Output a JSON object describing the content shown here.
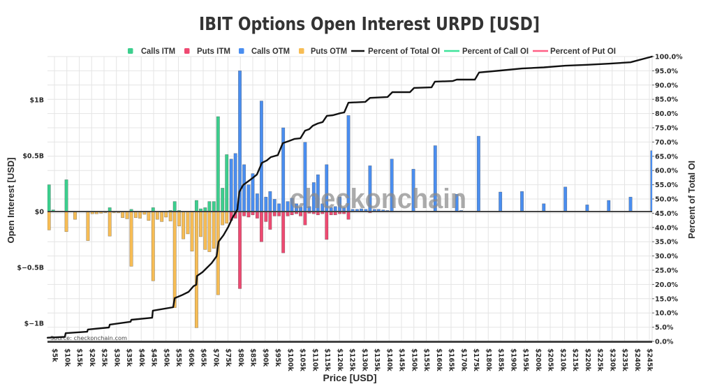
{
  "page": {
    "title": "IBIT Options Open Interest URPD [USD]",
    "watermark": "checkonchain",
    "source": "Source: checkonchain.com"
  },
  "legend": [
    {
      "label": "Calls ITM",
      "color": "#3ccf8e",
      "kind": "square"
    },
    {
      "label": "Puts ITM",
      "color": "#ef4a72",
      "kind": "square"
    },
    {
      "label": "Calls OTM",
      "color": "#4a8ef0",
      "kind": "square"
    },
    {
      "label": "Puts OTM",
      "color": "#f7bd55",
      "kind": "square"
    },
    {
      "label": "Percent of Total OI",
      "color": "#111111",
      "kind": "line"
    },
    {
      "label": "Percent of Call OI",
      "color": "#3ee39a",
      "kind": "line"
    },
    {
      "label": "Percent of Put OI",
      "color": "#ff5f85",
      "kind": "line"
    }
  ],
  "chart_data": {
    "type": "bar",
    "title": "IBIT Options Open Interest URPD [USD]",
    "xlabel": "Price [USD]",
    "ylabel": "Open Interest [USD]",
    "y2label": "Percent of Total OI",
    "barmode": "relative",
    "grid": true,
    "legend_position": "top",
    "xlim": [
      2.2,
      246.1
    ],
    "ylim": [
      -1.16,
      1.39
    ],
    "y2lim": [
      0,
      100
    ],
    "x_ticks": [
      {
        "value": 5,
        "label": "$5k"
      },
      {
        "value": 10,
        "label": "$10k"
      },
      {
        "value": 15,
        "label": "$15k"
      },
      {
        "value": 20,
        "label": "$20k"
      },
      {
        "value": 25,
        "label": "$25k"
      },
      {
        "value": 30,
        "label": "$30k"
      },
      {
        "value": 35,
        "label": "$35k"
      },
      {
        "value": 40,
        "label": "$40k"
      },
      {
        "value": 45,
        "label": "$45k"
      },
      {
        "value": 50,
        "label": "$50k"
      },
      {
        "value": 55,
        "label": "$55k"
      },
      {
        "value": 60,
        "label": "$60k"
      },
      {
        "value": 65,
        "label": "$65k"
      },
      {
        "value": 70,
        "label": "$70k"
      },
      {
        "value": 75,
        "label": "$75k"
      },
      {
        "value": 80,
        "label": "$80k"
      },
      {
        "value": 85,
        "label": "$85k"
      },
      {
        "value": 90,
        "label": "$90k"
      },
      {
        "value": 95,
        "label": "$95k"
      },
      {
        "value": 100,
        "label": "$100k"
      },
      {
        "value": 105,
        "label": "$105k"
      },
      {
        "value": 110,
        "label": "$110k"
      },
      {
        "value": 115,
        "label": "$115k"
      },
      {
        "value": 120,
        "label": "$120k"
      },
      {
        "value": 125,
        "label": "$125k"
      },
      {
        "value": 130,
        "label": "$130k"
      },
      {
        "value": 135,
        "label": "$135k"
      },
      {
        "value": 140,
        "label": "$140k"
      },
      {
        "value": 145,
        "label": "$145k"
      },
      {
        "value": 150,
        "label": "$150k"
      },
      {
        "value": 155,
        "label": "$155k"
      },
      {
        "value": 160,
        "label": "$160k"
      },
      {
        "value": 165,
        "label": "$165k"
      },
      {
        "value": 170,
        "label": "$170k"
      },
      {
        "value": 175,
        "label": "$175k"
      },
      {
        "value": 180,
        "label": "$180k"
      },
      {
        "value": 185,
        "label": "$185k"
      },
      {
        "value": 190,
        "label": "$190k"
      },
      {
        "value": 195,
        "label": "$195k"
      },
      {
        "value": 200,
        "label": "$200k"
      },
      {
        "value": 205,
        "label": "$205k"
      },
      {
        "value": 210,
        "label": "$210k"
      },
      {
        "value": 215,
        "label": "$215k"
      },
      {
        "value": 220,
        "label": "$220k"
      },
      {
        "value": 225,
        "label": "$225k"
      },
      {
        "value": 230,
        "label": "$230k"
      },
      {
        "value": 235,
        "label": "$235k"
      },
      {
        "value": 240,
        "label": "$240k"
      },
      {
        "value": 245,
        "label": "$245k"
      }
    ],
    "y_ticks": [
      {
        "value": 1,
        "label": "$1B"
      },
      {
        "value": 0.5,
        "label": "$0.5B"
      },
      {
        "value": 0,
        "label": "$0"
      },
      {
        "value": -0.5,
        "label": "$−0.5B"
      },
      {
        "value": -1,
        "label": "$−1B"
      }
    ],
    "y2_ticks": [
      {
        "value": 0,
        "label": "0.0%"
      },
      {
        "value": 5,
        "label": "5.0%"
      },
      {
        "value": 10,
        "label": "10.0%"
      },
      {
        "value": 15,
        "label": "15.0%"
      },
      {
        "value": 20,
        "label": "20.0%"
      },
      {
        "value": 25,
        "label": "25.0%"
      },
      {
        "value": 30,
        "label": "30.0%"
      },
      {
        "value": 35,
        "label": "35.0%"
      },
      {
        "value": 40,
        "label": "40.0%"
      },
      {
        "value": 45,
        "label": "45.0%"
      },
      {
        "value": 50,
        "label": "50.0%"
      },
      {
        "value": 55,
        "label": "55.0%"
      },
      {
        "value": 60,
        "label": "60.0%"
      },
      {
        "value": 65,
        "label": "65.0%"
      },
      {
        "value": 70,
        "label": "70.0%"
      },
      {
        "value": 75,
        "label": "75.0%"
      },
      {
        "value": 80,
        "label": "80.0%"
      },
      {
        "value": 85,
        "label": "85.0%"
      },
      {
        "value": 90,
        "label": "90.0%"
      },
      {
        "value": 95,
        "label": "95.0%"
      },
      {
        "value": 100,
        "label": "100.0%"
      }
    ],
    "series": [
      {
        "name": "Calls ITM",
        "type": "bar",
        "axis": "y",
        "color": "#3ccf8e",
        "points": [
          [
            2.8,
            0.24
          ],
          [
            4.5,
            0.015
          ],
          [
            6.3,
            0.005
          ],
          [
            8.0,
            0.005
          ],
          [
            9.8,
            0.285
          ],
          [
            18.5,
            0.005
          ],
          [
            27.3,
            0.035
          ],
          [
            36.0,
            0.02
          ],
          [
            44.8,
            0.035
          ],
          [
            51.8,
            0.01
          ],
          [
            53.5,
            0.09
          ],
          [
            55.3,
            0.01
          ],
          [
            62.3,
            0.1
          ],
          [
            64.0,
            0.025
          ],
          [
            65.8,
            0.035
          ],
          [
            67.5,
            0.09
          ],
          [
            69.3,
            0.09
          ],
          [
            71.0,
            0.85
          ],
          [
            72.8,
            0.21
          ],
          [
            74.5,
            0.51
          ]
        ]
      },
      {
        "name": "Puts ITM",
        "type": "bar",
        "axis": "y",
        "color": "#ef4a72",
        "points": [
          [
            76.3,
            -0.08
          ],
          [
            78.0,
            -0.06
          ],
          [
            79.8,
            -0.69
          ],
          [
            81.5,
            -0.04
          ],
          [
            83.3,
            -0.05
          ],
          [
            85.0,
            -0.03
          ],
          [
            86.8,
            -0.06
          ],
          [
            88.5,
            -0.27
          ],
          [
            90.3,
            -0.09
          ],
          [
            92.0,
            -0.16
          ],
          [
            93.8,
            -0.04
          ],
          [
            95.6,
            -0.04
          ],
          [
            97.3,
            -0.37
          ],
          [
            99.1,
            -0.04
          ],
          [
            100.8,
            -0.03
          ],
          [
            102.6,
            -0.02
          ],
          [
            104.3,
            -0.04
          ],
          [
            106.1,
            -0.12
          ],
          [
            107.8,
            -0.015
          ],
          [
            109.6,
            -0.02
          ],
          [
            111.3,
            -0.03
          ],
          [
            113.1,
            -0.02
          ],
          [
            114.8,
            -0.25
          ],
          [
            116.6,
            -0.03
          ],
          [
            118.3,
            -0.03
          ],
          [
            120.1,
            -0.02
          ],
          [
            121.8,
            -0.02
          ],
          [
            123.6,
            -0.07
          ],
          [
            125.3,
            -0.005
          ],
          [
            132.3,
            -0.01
          ],
          [
            141.1,
            -0.005
          ]
        ]
      },
      {
        "name": "Calls OTM",
        "type": "bar",
        "axis": "y",
        "color": "#4a8ef0",
        "points": [
          [
            76.3,
            0.47
          ],
          [
            78.0,
            0.52
          ],
          [
            79.8,
            1.26
          ],
          [
            81.5,
            0.42
          ],
          [
            83.3,
            0.24
          ],
          [
            85.0,
            0.34
          ],
          [
            86.8,
            0.16
          ],
          [
            88.5,
            0.99
          ],
          [
            90.3,
            0.13
          ],
          [
            92.0,
            0.18
          ],
          [
            93.8,
            0.11
          ],
          [
            95.6,
            0.07
          ],
          [
            97.3,
            0.75
          ],
          [
            99.1,
            0.09
          ],
          [
            100.8,
            0.12
          ],
          [
            102.6,
            0.07
          ],
          [
            104.3,
            0.04
          ],
          [
            106.1,
            0.62
          ],
          [
            107.8,
            0.045
          ],
          [
            109.6,
            0.26
          ],
          [
            111.3,
            0.33
          ],
          [
            113.1,
            0.07
          ],
          [
            114.8,
            0.42
          ],
          [
            116.6,
            0.035
          ],
          [
            118.3,
            0.045
          ],
          [
            120.1,
            0.13
          ],
          [
            121.8,
            0.035
          ],
          [
            123.6,
            0.86
          ],
          [
            125.3,
            0.02
          ],
          [
            127.1,
            0.02
          ],
          [
            128.8,
            0.025
          ],
          [
            130.6,
            0.02
          ],
          [
            132.3,
            0.41
          ],
          [
            134.1,
            0.02
          ],
          [
            135.8,
            0.02
          ],
          [
            137.6,
            0.015
          ],
          [
            139.3,
            0.01
          ],
          [
            141.1,
            0.47
          ],
          [
            142.8,
            0.005
          ],
          [
            144.6,
            0.005
          ],
          [
            149.8,
            0.38
          ],
          [
            155.1,
            0.005
          ],
          [
            158.6,
            0.59
          ],
          [
            167.3,
            0.155
          ],
          [
            169.1,
            0.01
          ],
          [
            176.1,
            0.675
          ],
          [
            184.9,
            0.175
          ],
          [
            193.6,
            0.18
          ],
          [
            202.4,
            0.07
          ],
          [
            211.1,
            0.22
          ],
          [
            219.9,
            0.06
          ],
          [
            228.6,
            0.1
          ],
          [
            237.4,
            0.13
          ],
          [
            246.1,
            0.545
          ]
        ]
      },
      {
        "name": "Puts OTM",
        "type": "bar",
        "axis": "y",
        "color": "#f7bd55",
        "points": [
          [
            2.8,
            -0.165
          ],
          [
            9.8,
            -0.18
          ],
          [
            13.3,
            -0.07
          ],
          [
            18.5,
            -0.26
          ],
          [
            20.3,
            -0.02
          ],
          [
            22.0,
            -0.02
          ],
          [
            23.8,
            -0.015
          ],
          [
            25.5,
            -0.01
          ],
          [
            27.3,
            -0.22
          ],
          [
            29.0,
            -0.01
          ],
          [
            30.8,
            -0.01
          ],
          [
            32.5,
            -0.055
          ],
          [
            34.3,
            -0.065
          ],
          [
            36.0,
            -0.49
          ],
          [
            37.8,
            -0.055
          ],
          [
            39.5,
            -0.06
          ],
          [
            41.3,
            -0.025
          ],
          [
            43.0,
            -0.08
          ],
          [
            44.8,
            -0.62
          ],
          [
            46.5,
            -0.07
          ],
          [
            48.3,
            -0.09
          ],
          [
            50.0,
            -0.05
          ],
          [
            51.8,
            -0.085
          ],
          [
            53.5,
            -0.86
          ],
          [
            55.3,
            -0.13
          ],
          [
            57.0,
            -0.245
          ],
          [
            58.8,
            -0.2
          ],
          [
            60.5,
            -0.355
          ],
          [
            62.3,
            -1.04
          ],
          [
            64.0,
            -0.225
          ],
          [
            65.8,
            -0.34
          ],
          [
            67.5,
            -0.36
          ],
          [
            69.3,
            -0.33
          ],
          [
            71.0,
            -0.745
          ],
          [
            72.8,
            -0.12
          ],
          [
            74.5,
            -0.105
          ]
        ]
      },
      {
        "name": "Percent of Total OI",
        "type": "line",
        "axis": "y2",
        "color": "#111111",
        "points": [
          [
            2.2,
            1.3
          ],
          [
            9.2,
            1.6
          ],
          [
            9.5,
            2.9
          ],
          [
            18.2,
            3.4
          ],
          [
            18.5,
            4.2
          ],
          [
            27.0,
            4.9
          ],
          [
            27.3,
            5.9
          ],
          [
            35.7,
            6.9
          ],
          [
            36.0,
            7.6
          ],
          [
            44.4,
            8.3
          ],
          [
            44.7,
            10.8
          ],
          [
            52.9,
            12.0
          ],
          [
            53.5,
            15.2
          ],
          [
            56.3,
            16.2
          ],
          [
            59.1,
            17.4
          ],
          [
            61.1,
            19.4
          ],
          [
            62.2,
            19.9
          ],
          [
            62.5,
            23.0
          ],
          [
            64.7,
            24.3
          ],
          [
            66.7,
            26.0
          ],
          [
            68.4,
            27.5
          ],
          [
            70.4,
            29.9
          ],
          [
            71.2,
            35.0
          ],
          [
            73.2,
            37.3
          ],
          [
            75.1,
            40.2
          ],
          [
            76.8,
            43.4
          ],
          [
            78.8,
            46.3
          ],
          [
            79.6,
            52.5
          ],
          [
            81.1,
            54.9
          ],
          [
            83.0,
            56.1
          ],
          [
            85.0,
            57.4
          ],
          [
            86.7,
            58.6
          ],
          [
            88.7,
            62.7
          ],
          [
            90.6,
            63.5
          ],
          [
            92.3,
            64.7
          ],
          [
            95.1,
            65.4
          ],
          [
            97.1,
            69.6
          ],
          [
            99.4,
            70.3
          ],
          [
            101.9,
            71.1
          ],
          [
            104.2,
            71.3
          ],
          [
            106.1,
            74.0
          ],
          [
            107.8,
            74.5
          ],
          [
            109.2,
            75.7
          ],
          [
            111.2,
            76.5
          ],
          [
            113.2,
            77.0
          ],
          [
            114.9,
            79.2
          ],
          [
            117.4,
            79.4
          ],
          [
            120.2,
            80.1
          ],
          [
            121.9,
            80.4
          ],
          [
            123.6,
            83.8
          ],
          [
            130.4,
            84.1
          ],
          [
            132.3,
            85.5
          ],
          [
            139.4,
            85.8
          ],
          [
            141.3,
            87.5
          ],
          [
            148.4,
            87.5
          ],
          [
            150.1,
            89.0
          ],
          [
            157.1,
            89.2
          ],
          [
            158.5,
            91.2
          ],
          [
            165.6,
            91.4
          ],
          [
            167.3,
            91.9
          ],
          [
            174.6,
            91.9
          ],
          [
            176.3,
            94.4
          ],
          [
            185.0,
            95.1
          ],
          [
            193.6,
            95.8
          ],
          [
            202.4,
            96.2
          ],
          [
            211.1,
            96.8
          ],
          [
            219.9,
            97.1
          ],
          [
            228.6,
            97.5
          ],
          [
            237.4,
            98.0
          ],
          [
            246.1,
            100.0
          ]
        ]
      },
      {
        "name": "Percent of Call OI",
        "type": "line",
        "axis": "y2",
        "color": "#3ee39a",
        "points": []
      },
      {
        "name": "Percent of Put OI",
        "type": "line",
        "axis": "y2",
        "color": "#ff5f85",
        "points": []
      }
    ]
  }
}
